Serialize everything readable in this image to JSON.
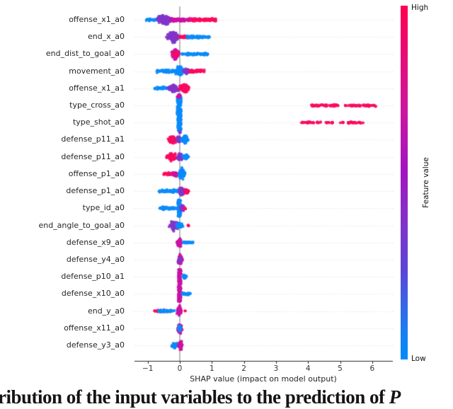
{
  "caption": {
    "text_visible": "ribution of the input variables to the prediction of ",
    "italic_suffix": "P"
  },
  "chart_data": {
    "type": "scatter",
    "subtype": "shap_beeswarm_summary",
    "title": "",
    "xlabel": "SHAP value (impact on model output)",
    "ylabel": "",
    "xticks": [
      -1,
      0,
      1,
      2,
      3,
      4,
      5,
      6
    ],
    "xlim": [
      -1.42,
      6.65
    ],
    "grid": "dotted horizontal line per feature row",
    "zero_line_color": "#8c8c8c",
    "grid_color": "#d9d2d2",
    "axis_color": "#262626",
    "colorbar": {
      "title": "Feature value",
      "high_label": "High",
      "low_label": "Low",
      "high_color": "#ff0051",
      "low_color": "#008bfb"
    },
    "palette": {
      "blue": "#0a8bfa",
      "purple": "#8236c9",
      "magenta": "#cb12a4",
      "red": "#fa0a60"
    },
    "features": [
      {
        "name": "offense_x1_a0",
        "shap_range": [
          -1.05,
          1.13
        ],
        "clusters": [
          {
            "t": "band",
            "x": [
              -1.05,
              -0.62
            ],
            "c": "blue",
            "h": 3,
            "n": 35
          },
          {
            "t": "blob",
            "x": [
              -0.82,
              -0.15
            ],
            "c": "purple",
            "h": 8,
            "n": 140
          },
          {
            "t": "band",
            "x": [
              -0.3,
              0.12
            ],
            "c": "magenta",
            "h": 4,
            "n": 55
          },
          {
            "t": "band",
            "x": [
              0.05,
              0.5
            ],
            "c": "magenta",
            "h": 3.5,
            "n": 40
          },
          {
            "t": "band",
            "x": [
              0.32,
              1.13
            ],
            "c": "red",
            "h": 3.5,
            "n": 95
          }
        ]
      },
      {
        "name": "end_x_a0",
        "shap_range": [
          -0.45,
          0.93
        ],
        "clusters": [
          {
            "t": "blob",
            "x": [
              -0.45,
              0.04
            ],
            "c": "purple",
            "h": 9,
            "n": 150
          },
          {
            "t": "band",
            "x": [
              0.0,
              0.28
            ],
            "c": "red",
            "h": 3.5,
            "n": 40
          },
          {
            "t": "band",
            "x": [
              0.22,
              0.93
            ],
            "c": "blue",
            "h": 3,
            "n": 70
          }
        ]
      },
      {
        "name": "end_dist_to_goal_a0",
        "shap_range": [
          -0.3,
          0.88
        ],
        "clusters": [
          {
            "t": "blob",
            "x": [
              -0.3,
              0.04
            ],
            "c": "magenta",
            "h": 8,
            "n": 120
          },
          {
            "t": "blob",
            "x": [
              -0.22,
              -0.02
            ],
            "c": "red",
            "h": 4,
            "n": 35
          },
          {
            "t": "band",
            "x": [
              0.04,
              0.88
            ],
            "c": "blue",
            "h": 3,
            "n": 85
          }
        ]
      },
      {
        "name": "movement_a0",
        "shap_range": [
          -0.72,
          0.78
        ],
        "clusters": [
          {
            "t": "band",
            "x": [
              -0.72,
              -0.08
            ],
            "c": "blue",
            "h": 3.5,
            "n": 60
          },
          {
            "t": "blob",
            "x": [
              -0.16,
              0.14
            ],
            "c": "blue",
            "h": 9,
            "n": 110
          },
          {
            "t": "blob",
            "x": [
              0.08,
              0.34
            ],
            "c": "purple",
            "h": 5,
            "n": 45
          },
          {
            "t": "band",
            "x": [
              0.3,
              0.78
            ],
            "c": "red",
            "h": 3.5,
            "n": 60
          }
        ]
      },
      {
        "name": "offense_x1_a1",
        "shap_range": [
          -0.78,
          0.34
        ],
        "clusters": [
          {
            "t": "band",
            "x": [
              -0.78,
              -0.28
            ],
            "c": "blue",
            "h": 3.5,
            "n": 45
          },
          {
            "t": "blob",
            "x": [
              -0.4,
              0.02
            ],
            "c": "purple",
            "h": 7,
            "n": 95
          },
          {
            "t": "blob",
            "x": [
              -0.04,
              0.34
            ],
            "c": "red",
            "h": 8,
            "n": 120
          }
        ]
      },
      {
        "name": "type_cross_a0",
        "shap_range": [
          -0.08,
          6.12
        ],
        "clusters": [
          {
            "t": "bar",
            "x": [
              -0.08,
              0.04
            ],
            "c": "blue",
            "h": 13,
            "n": 140
          },
          {
            "t": "blob",
            "x": [
              -0.1,
              0.08
            ],
            "c": "magenta",
            "h": 4,
            "n": 18,
            "dy": -13
          },
          {
            "t": "blob",
            "x": [
              -0.04,
              0.04
            ],
            "c": "purple",
            "h": 2,
            "n": 5,
            "dy": 15
          },
          {
            "t": "band",
            "x": [
              4.1,
              4.97
            ],
            "c": "red",
            "h": 2.5,
            "n": 50
          },
          {
            "t": "band",
            "x": [
              5.16,
              6.12
            ],
            "c": "red",
            "h": 2.5,
            "n": 55
          }
        ]
      },
      {
        "name": "type_shot_a0",
        "shap_range": [
          -0.06,
          5.77
        ],
        "clusters": [
          {
            "t": "bar",
            "x": [
              -0.06,
              0.04
            ],
            "c": "blue",
            "h": 12,
            "n": 120
          },
          {
            "t": "blob",
            "x": [
              -0.03,
              0.04
            ],
            "c": "purple",
            "h": 2,
            "n": 5,
            "dy": 14
          },
          {
            "t": "band",
            "x": [
              3.77,
              4.18
            ],
            "c": "red",
            "h": 2,
            "n": 22
          },
          {
            "t": "dot",
            "x": [
              4.25,
              4.4
            ],
            "c": "red",
            "h": 1.5,
            "n": 6
          },
          {
            "t": "band",
            "x": [
              4.55,
              4.77
            ],
            "c": "red",
            "h": 1.8,
            "n": 12
          },
          {
            "t": "dot",
            "x": [
              5.0,
              5.1
            ],
            "c": "red",
            "h": 1.5,
            "n": 5
          },
          {
            "t": "band",
            "x": [
              5.2,
              5.77
            ],
            "c": "red",
            "h": 2,
            "n": 30
          }
        ]
      },
      {
        "name": "defense_p11_a1",
        "shap_range": [
          -0.42,
          0.3
        ],
        "clusters": [
          {
            "t": "blob",
            "x": [
              -0.42,
              -0.06
            ],
            "c": "red",
            "h": 7,
            "n": 85
          },
          {
            "t": "blob",
            "x": [
              -0.14,
              0.06
            ],
            "c": "purple",
            "h": 6,
            "n": 50
          },
          {
            "t": "blob",
            "x": [
              0.0,
              0.3
            ],
            "c": "blue",
            "h": 7,
            "n": 85
          }
        ]
      },
      {
        "name": "defense_p11_a0",
        "shap_range": [
          -0.48,
          0.3
        ],
        "clusters": [
          {
            "t": "blob",
            "x": [
              -0.48,
              -0.04
            ],
            "c": "red",
            "h": 7,
            "n": 95
          },
          {
            "t": "blob",
            "x": [
              -0.1,
              0.12
            ],
            "c": "purple",
            "h": 7,
            "n": 60
          },
          {
            "t": "blob",
            "x": [
              0.06,
              0.3
            ],
            "c": "blue",
            "h": 5,
            "n": 45
          }
        ]
      },
      {
        "name": "offense_p1_a0",
        "shap_range": [
          -0.5,
          0.2
        ],
        "clusters": [
          {
            "t": "band",
            "x": [
              -0.5,
              -0.2
            ],
            "c": "red",
            "h": 3,
            "n": 35
          },
          {
            "t": "blob",
            "x": [
              -0.26,
              -0.02
            ],
            "c": "magenta",
            "h": 4,
            "n": 28
          },
          {
            "t": "blob",
            "x": [
              -0.06,
              0.2
            ],
            "c": "blue",
            "h": 9,
            "n": 110
          }
        ]
      },
      {
        "name": "defense_p1_a0",
        "shap_range": [
          -0.66,
          0.3
        ],
        "clusters": [
          {
            "t": "band",
            "x": [
              -0.66,
              -0.06
            ],
            "c": "blue",
            "h": 4,
            "n": 70
          },
          {
            "t": "blob",
            "x": [
              -0.06,
              0.16
            ],
            "c": "purple",
            "h": 7,
            "n": 60
          },
          {
            "t": "blob",
            "x": [
              0.1,
              0.3
            ],
            "c": "red",
            "h": 4,
            "n": 30
          }
        ]
      },
      {
        "name": "type_id_a0",
        "shap_range": [
          -0.64,
          0.18
        ],
        "clusters": [
          {
            "t": "band",
            "x": [
              -0.64,
              -0.04
            ],
            "c": "blue",
            "h": 3.5,
            "n": 55
          },
          {
            "t": "bar",
            "x": [
              -0.06,
              0.03
            ],
            "c": "blue",
            "h": 12,
            "n": 70
          },
          {
            "t": "blob",
            "x": [
              0.0,
              0.16
            ],
            "c": "purple",
            "h": 6,
            "n": 45
          },
          {
            "t": "dot",
            "x": [
              0.12,
              0.18
            ],
            "c": "red",
            "h": 1.5,
            "n": 4
          }
        ]
      },
      {
        "name": "end_angle_to_goal_a0",
        "shap_range": [
          -0.38,
          0.28
        ],
        "clusters": [
          {
            "t": "blob",
            "x": [
              -0.38,
              0.04
            ],
            "c": "purple",
            "h": 8,
            "n": 95
          },
          {
            "t": "blob",
            "x": [
              -0.16,
              0.14
            ],
            "c": "blue",
            "h": 5,
            "n": 40
          },
          {
            "t": "dot",
            "x": [
              0.22,
              0.28
            ],
            "c": "red",
            "h": 1.5,
            "n": 4
          }
        ]
      },
      {
        "name": "defense_x9_a0",
        "shap_range": [
          -0.1,
          0.42
        ],
        "clusters": [
          {
            "t": "blob",
            "x": [
              -0.1,
              0.07
            ],
            "c": "magenta",
            "h": 7,
            "n": 75
          },
          {
            "t": "band",
            "x": [
              0.1,
              0.42
            ],
            "c": "blue",
            "h": 2.5,
            "n": 32
          }
        ]
      },
      {
        "name": "defense_y4_a0",
        "shap_range": [
          -0.08,
          0.12
        ],
        "clusters": [
          {
            "t": "blob",
            "x": [
              -0.08,
              0.12
            ],
            "c": "magenta",
            "h": 8,
            "n": 85
          },
          {
            "t": "blob",
            "x": [
              -0.06,
              0.06
            ],
            "c": "purple",
            "h": 5,
            "n": 30
          }
        ]
      },
      {
        "name": "defense_p10_a1",
        "shap_range": [
          -0.04,
          0.25
        ],
        "clusters": [
          {
            "t": "bar",
            "x": [
              -0.04,
              0.04
            ],
            "c": "magenta",
            "h": 11,
            "n": 75
          },
          {
            "t": "blob",
            "x": [
              0.07,
              0.25
            ],
            "c": "blue",
            "h": 4,
            "n": 30
          }
        ]
      },
      {
        "name": "defense_x10_a0",
        "shap_range": [
          -0.05,
          0.34
        ],
        "clusters": [
          {
            "t": "bar",
            "x": [
              -0.05,
              0.04
            ],
            "c": "magenta",
            "h": 11,
            "n": 75
          },
          {
            "t": "band",
            "x": [
              0.07,
              0.34
            ],
            "c": "blue",
            "h": 2.5,
            "n": 28
          }
        ]
      },
      {
        "name": "end_y_a0",
        "shap_range": [
          -0.8,
          0.18
        ],
        "clusters": [
          {
            "t": "band",
            "x": [
              -0.8,
              -0.26
            ],
            "c": "red",
            "h": 2.5,
            "n": 50
          },
          {
            "t": "band",
            "x": [
              -0.66,
              -0.14
            ],
            "c": "blue",
            "h": 3,
            "n": 50
          },
          {
            "t": "blob",
            "x": [
              -0.1,
              0.07
            ],
            "c": "magenta",
            "h": 8,
            "n": 75
          },
          {
            "t": "dot",
            "x": [
              0.13,
              0.18
            ],
            "c": "red",
            "h": 1,
            "n": 2
          }
        ]
      },
      {
        "name": "offense_x11_a0",
        "shap_range": [
          -0.1,
          0.1
        ],
        "clusters": [
          {
            "t": "blob",
            "x": [
              -0.1,
              0.1
            ],
            "c": "magenta",
            "h": 8,
            "n": 85
          },
          {
            "t": "blob",
            "x": [
              -0.08,
              0.08
            ],
            "c": "blue",
            "h": 5,
            "n": 28
          }
        ]
      },
      {
        "name": "defense_y3_a0",
        "shap_range": [
          -0.28,
          0.1
        ],
        "clusters": [
          {
            "t": "blob",
            "x": [
              -0.28,
              -0.03
            ],
            "c": "blue",
            "h": 5,
            "n": 45
          },
          {
            "t": "blob",
            "x": [
              -0.06,
              0.1
            ],
            "c": "magenta",
            "h": 7,
            "n": 75
          }
        ]
      }
    ]
  }
}
